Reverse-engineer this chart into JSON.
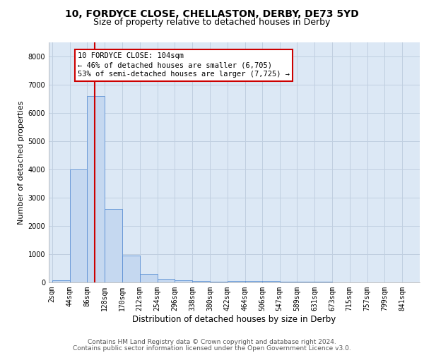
{
  "title": "10, FORDYCE CLOSE, CHELLASTON, DERBY, DE73 5YD",
  "subtitle": "Size of property relative to detached houses in Derby",
  "xlabel": "Distribution of detached houses by size in Derby",
  "ylabel": "Number of detached properties",
  "bin_edges": [
    2,
    44,
    86,
    128,
    170,
    212,
    254,
    296,
    338,
    380,
    422,
    464,
    506,
    547,
    589,
    631,
    673,
    715,
    757,
    799,
    841
  ],
  "bar_heights": [
    80,
    4000,
    6600,
    2600,
    950,
    300,
    120,
    80,
    50,
    20,
    50,
    50,
    40,
    30,
    20,
    15,
    10,
    10,
    10,
    10
  ],
  "bar_color": "#c5d8f0",
  "bar_edge_color": "#5a8fd4",
  "property_size": 104,
  "vline_color": "#cc0000",
  "annotation_line1": "10 FORDYCE CLOSE: 104sqm",
  "annotation_line2": "← 46% of detached houses are smaller (6,705)",
  "annotation_line3": "53% of semi-detached houses are larger (7,725) →",
  "annotation_box_color": "#ffffff",
  "annotation_box_edge_color": "#cc0000",
  "ylim": [
    0,
    8500
  ],
  "yticks": [
    0,
    1000,
    2000,
    3000,
    4000,
    5000,
    6000,
    7000,
    8000
  ],
  "background_color": "#dce8f5",
  "grid_color": "#c0cfe0",
  "footer_line1": "Contains HM Land Registry data © Crown copyright and database right 2024.",
  "footer_line2": "Contains public sector information licensed under the Open Government Licence v3.0.",
  "title_fontsize": 10,
  "subtitle_fontsize": 9,
  "xlabel_fontsize": 8.5,
  "ylabel_fontsize": 8,
  "tick_fontsize": 7,
  "annotation_fontsize": 7.5,
  "footer_fontsize": 6.5
}
